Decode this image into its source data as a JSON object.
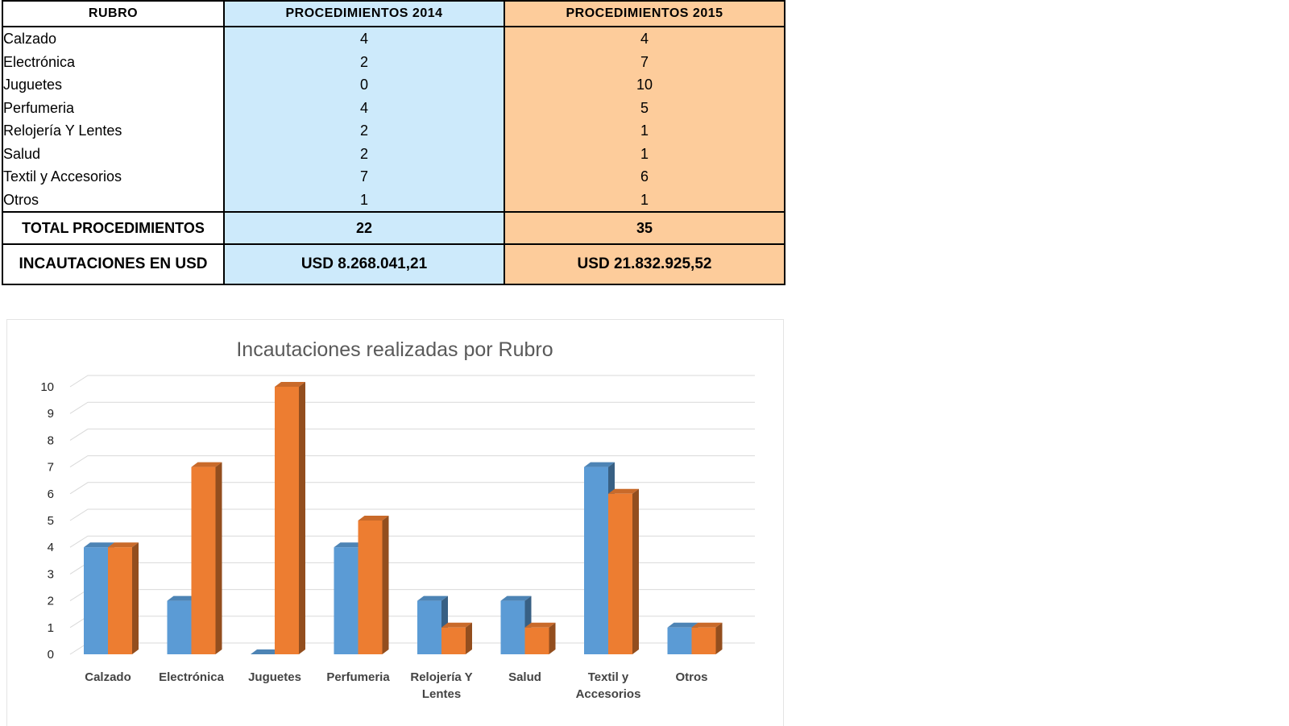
{
  "table": {
    "headers": [
      "RUBRO",
      "PROCEDIMIENTOS 2014",
      "PROCEDIMIENTOS 2015"
    ],
    "rows": [
      {
        "rubro": "Calzado",
        "y2014": "4",
        "y2015": "4"
      },
      {
        "rubro": "Electrónica",
        "y2014": "2",
        "y2015": "7"
      },
      {
        "rubro": "Juguetes",
        "y2014": "0",
        "y2015": "10"
      },
      {
        "rubro": "Perfumeria",
        "y2014": "4",
        "y2015": "5"
      },
      {
        "rubro": "Relojería Y Lentes",
        "y2014": "2",
        "y2015": "1"
      },
      {
        "rubro": "Salud",
        "y2014": "2",
        "y2015": "1"
      },
      {
        "rubro": "Textil y Accesorios",
        "y2014": "7",
        "y2015": "6"
      },
      {
        "rubro": "Otros",
        "y2014": "1",
        "y2015": "1"
      }
    ],
    "total": {
      "label": "TOTAL PROCEDIMIENTOS",
      "y2014": "22",
      "y2015": "35"
    },
    "seizures": {
      "label": "INCAUTACIONES EN USD",
      "y2014": "USD 8.268.041,21",
      "y2015": "USD 21.832.925,52"
    }
  },
  "colors": {
    "col2014_bg": "#cdeafb",
    "col2015_bg": "#fdcc9b",
    "bar2014": "#5b9bd5",
    "bar2015": "#ed7d31"
  },
  "chart_data": {
    "type": "bar",
    "title": "Incautaciones realizadas por Rubro",
    "categories": [
      [
        "Calzado"
      ],
      [
        "Electrónica"
      ],
      [
        "Juguetes"
      ],
      [
        "Perfumeria"
      ],
      [
        "Relojería Y",
        "Lentes"
      ],
      [
        "Salud"
      ],
      [
        "Textil y",
        "Accesorios"
      ],
      [
        "Otros"
      ]
    ],
    "series": [
      {
        "values": [
          4,
          2,
          0,
          4,
          2,
          2,
          7,
          1
        ]
      },
      {
        "values": [
          4,
          7,
          10,
          5,
          1,
          1,
          6,
          1
        ]
      }
    ],
    "ylim": [
      0,
      10
    ],
    "yticks": [
      0,
      1,
      2,
      3,
      4,
      5,
      6,
      7,
      8,
      9,
      10
    ],
    "xlabel": "",
    "ylabel": "",
    "grid": true,
    "legend": "none",
    "style": "3d-clustered-column"
  }
}
